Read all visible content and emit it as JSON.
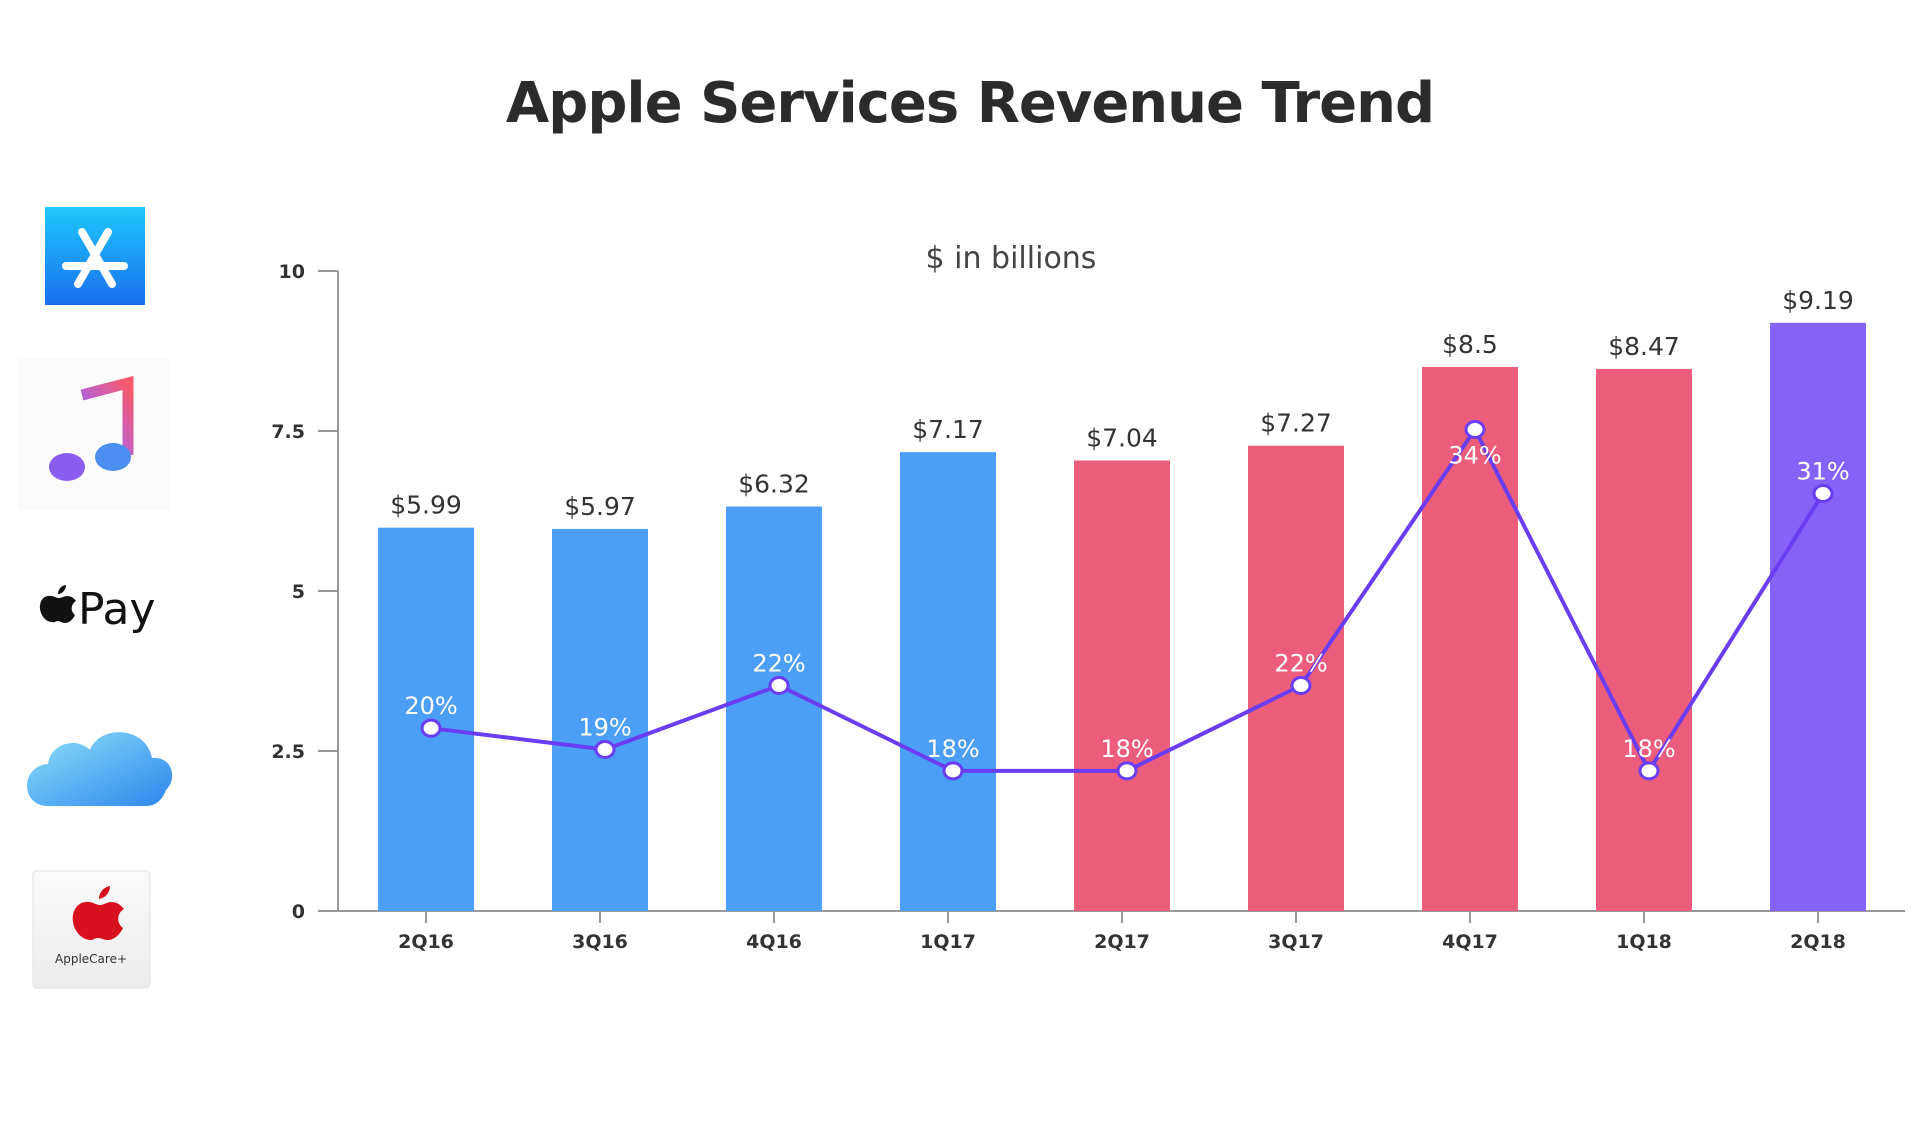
{
  "chart_data": {
    "type": "bar",
    "title": "Apple Services Revenue Trend",
    "subtitle": "$ in billions",
    "xlabel": "",
    "ylabel": "",
    "ylim": [
      0,
      10
    ],
    "yticks": [
      "0",
      "2.5",
      "5",
      "7.5",
      "10"
    ],
    "grid": false,
    "categories": [
      "2Q16",
      "3Q16",
      "4Q16",
      "1Q17",
      "2Q17",
      "3Q17",
      "4Q17",
      "1Q18",
      "2Q18"
    ],
    "series": [
      {
        "type": "bar",
        "values": [
          5.99,
          5.97,
          6.32,
          7.17,
          7.04,
          7.27,
          8.5,
          8.47,
          9.19
        ],
        "labels": [
          "$5.99",
          "$5.97",
          "$6.32",
          "$7.17",
          "$7.04",
          "$7.27",
          "$8.5",
          "$8.47",
          "$9.19"
        ],
        "colors": [
          "#4b9ff6",
          "#4b9ff6",
          "#4b9ff6",
          "#4b9ff6",
          "#ec5d7b",
          "#ec5d7b",
          "#ec5d7b",
          "#ec5d7b",
          "#8663f8"
        ]
      },
      {
        "type": "line",
        "values": [
          20,
          19,
          22,
          18,
          18,
          22,
          34,
          18,
          31
        ],
        "labels": [
          "20%",
          "19%",
          "22%",
          "18%",
          "18%",
          "22%",
          "34%",
          "18%",
          "31%"
        ],
        "color": "#6a3df2"
      }
    ]
  },
  "sidebar": {
    "icons": [
      {
        "name": "app-store-icon"
      },
      {
        "name": "apple-music-icon"
      },
      {
        "name": "apple-pay-logo",
        "text": "Pay"
      },
      {
        "name": "icloud-icon"
      },
      {
        "name": "applecare-logo",
        "text": "AppleCare+"
      }
    ]
  }
}
